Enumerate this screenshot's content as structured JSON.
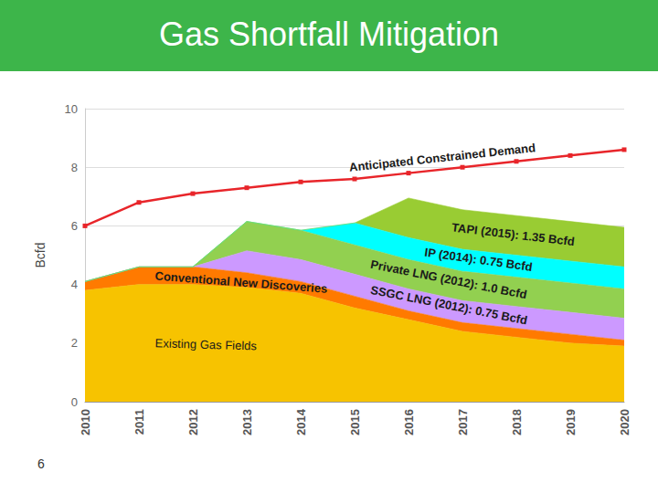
{
  "chart_data": {
    "type": "area",
    "title": "Gas Shortfall Mitigation",
    "page_number": "6",
    "y_label": "Bcfd",
    "categories": [
      "2010",
      "2011",
      "2012",
      "2013",
      "2014",
      "2015",
      "2016",
      "2017",
      "2018",
      "2019",
      "2020"
    ],
    "ylim": [
      0,
      10
    ],
    "yticks": [
      0,
      2,
      4,
      6,
      8,
      10
    ],
    "grid": true,
    "stacked": true,
    "series": [
      {
        "name": "Existing Gas Fields",
        "type": "area",
        "color": "#F7C300",
        "values": [
          3.8,
          4.0,
          4.0,
          3.9,
          3.7,
          3.2,
          2.8,
          2.4,
          2.2,
          2.0,
          1.9
        ]
      },
      {
        "name": "Conventional New Discoveries",
        "type": "area",
        "color": "#FF7A00",
        "values": [
          0.3,
          0.6,
          0.6,
          0.5,
          0.4,
          0.4,
          0.3,
          0.3,
          0.3,
          0.3,
          0.2
        ]
      },
      {
        "name": "SSGC LNG (2012): 0.75 Bcfd",
        "type": "area",
        "color": "#CC99FF",
        "values": [
          0,
          0,
          0,
          0.75,
          0.75,
          0.75,
          0.75,
          0.75,
          0.75,
          0.75,
          0.75
        ]
      },
      {
        "name": "Private LNG (2012): 1.0 Bcfd",
        "type": "area",
        "color": "#92D050",
        "values": [
          0,
          0,
          0,
          1.0,
          1.0,
          1.0,
          1.0,
          1.0,
          1.0,
          1.0,
          1.0
        ]
      },
      {
        "name": "IP (2014): 0.75 Bcfd",
        "type": "area",
        "color": "#00FFFF",
        "values": [
          0,
          0,
          0,
          0,
          0,
          0.75,
          0.75,
          0.75,
          0.75,
          0.75,
          0.75
        ]
      },
      {
        "name": "TAPI (2015): 1.35 Bcfd",
        "type": "area",
        "color": "#99CC33",
        "values": [
          0,
          0,
          0,
          0,
          0,
          0,
          1.35,
          1.35,
          1.35,
          1.35,
          1.35
        ]
      },
      {
        "name": "Anticipated Constrained Demand",
        "type": "line",
        "color": "#E8252A",
        "marker": "square",
        "values": [
          6.0,
          6.8,
          7.1,
          7.3,
          7.5,
          7.6,
          7.8,
          8.0,
          8.2,
          8.4,
          8.6
        ]
      }
    ]
  }
}
